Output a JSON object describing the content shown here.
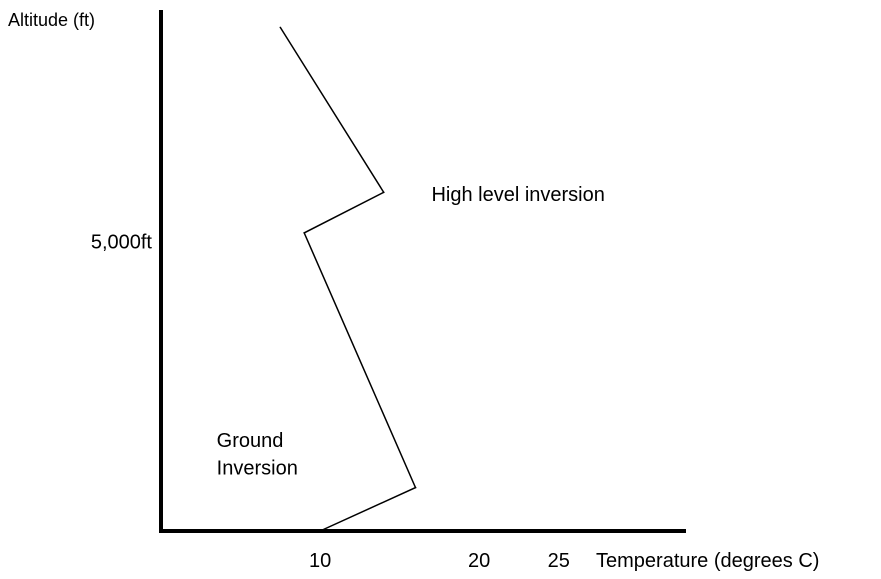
{
  "chart_data": {
    "type": "line",
    "xlabel": "Temperature (degrees C)",
    "ylabel": "Altitude (ft)",
    "x_ticks": [
      {
        "value": 10,
        "label": "10"
      },
      {
        "value": 20,
        "label": "20"
      },
      {
        "value": 25,
        "label": "25"
      }
    ],
    "y_ticks": [
      {
        "value": 5000,
        "label": "5,000ft"
      }
    ],
    "xlim": [
      0,
      33
    ],
    "ylim": [
      0,
      9000
    ],
    "series": [
      {
        "points": [
          {
            "x": 10,
            "y": 0
          },
          {
            "x": 16,
            "y": 750
          },
          {
            "x": 9,
            "y": 5150
          },
          {
            "x": 14,
            "y": 5850
          },
          {
            "x": 7.5,
            "y": 8700
          }
        ]
      }
    ],
    "annotations": [
      {
        "text": "High level inversion",
        "x": 17,
        "y": 5700
      },
      {
        "text": "Ground",
        "x": 3.5,
        "y": 1450
      },
      {
        "text": "Inversion",
        "x": 3.5,
        "y": 980
      }
    ],
    "grid": false
  },
  "colors": {
    "line": "#000000",
    "axis": "#000000",
    "text": "#000000"
  }
}
